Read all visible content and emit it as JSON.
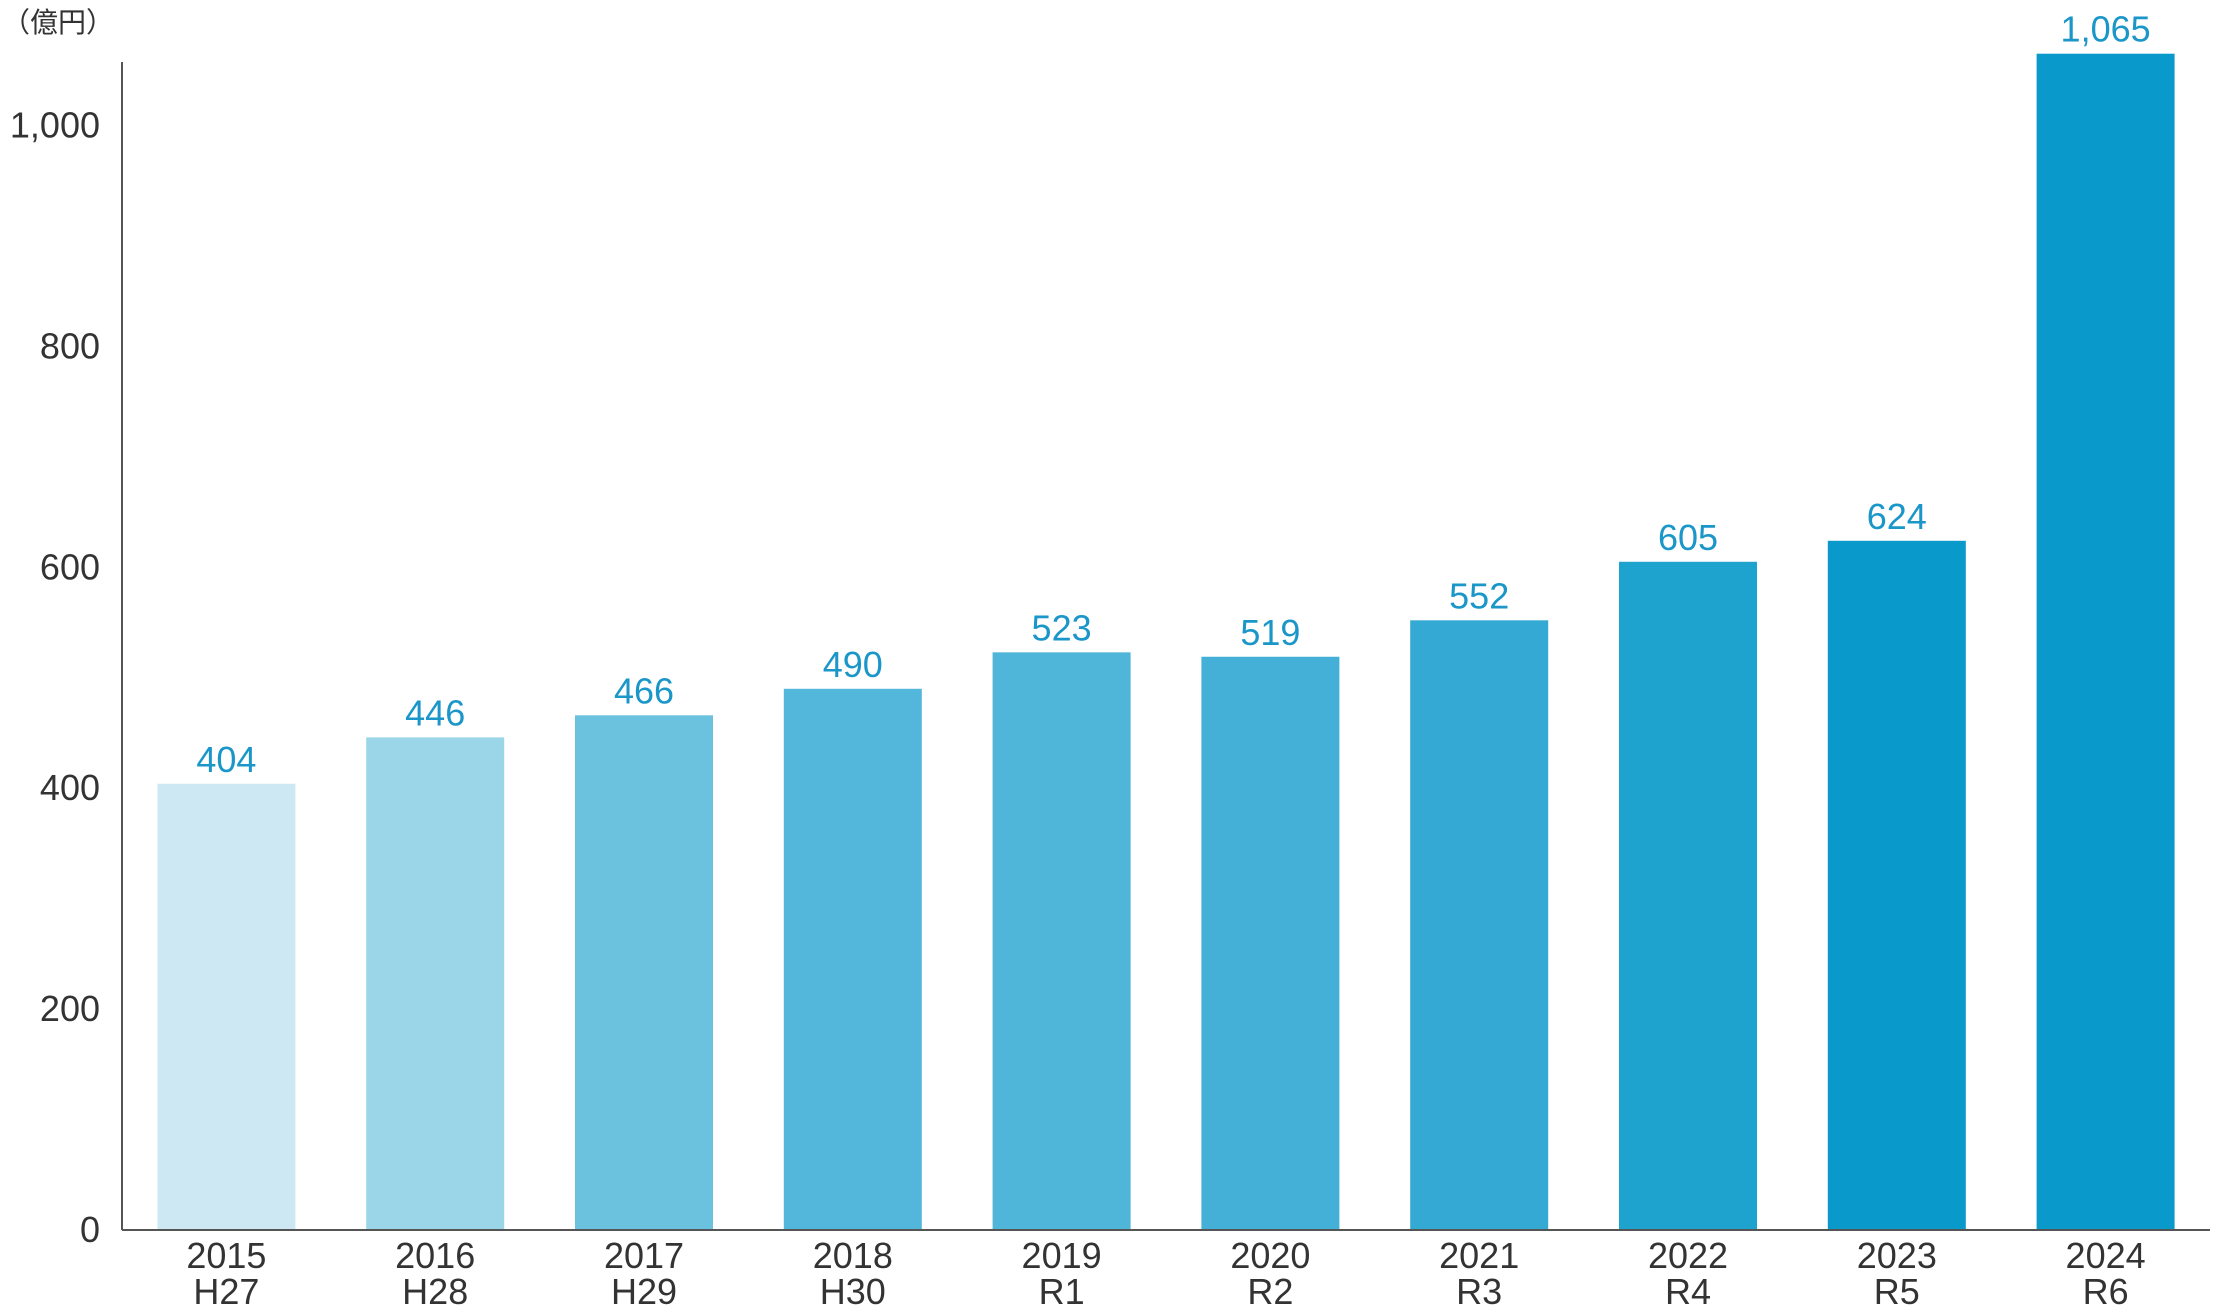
{
  "chart_data": {
    "type": "bar",
    "unit_label": "（億円）",
    "categories": [
      {
        "year": "2015",
        "era": "H27"
      },
      {
        "year": "2016",
        "era": "H28"
      },
      {
        "year": "2017",
        "era": "H29"
      },
      {
        "year": "2018",
        "era": "H30"
      },
      {
        "year": "2019",
        "era": "R1"
      },
      {
        "year": "2020",
        "era": "R2"
      },
      {
        "year": "2021",
        "era": "R3"
      },
      {
        "year": "2022",
        "era": "R4"
      },
      {
        "year": "2023",
        "era": "R5"
      },
      {
        "year": "2024",
        "era": "R6"
      }
    ],
    "values": [
      404,
      446,
      466,
      490,
      523,
      519,
      552,
      605,
      624,
      1065
    ],
    "data_labels": [
      "404",
      "446",
      "466",
      "490",
      "523",
      "519",
      "552",
      "605",
      "624",
      "1,065"
    ],
    "y_ticks": [
      {
        "value": 0,
        "label": "0"
      },
      {
        "value": 200,
        "label": "200"
      },
      {
        "value": 400,
        "label": "400"
      },
      {
        "value": 600,
        "label": "600"
      },
      {
        "value": 800,
        "label": "800"
      },
      {
        "value": 1000,
        "label": "1,000"
      }
    ],
    "ylim": [
      0,
      1065
    ],
    "grid": false,
    "colors": [
      "#cde8f2",
      "#9ad5e8",
      "#6ac2de",
      "#52b7da",
      "#4fb5d9",
      "#45b0d7",
      "#34a9d3",
      "#1ea3cf",
      "#0a99cb",
      "#0a99cb"
    ],
    "label_color": "#1a96c8",
    "axis_color": "#555555"
  }
}
